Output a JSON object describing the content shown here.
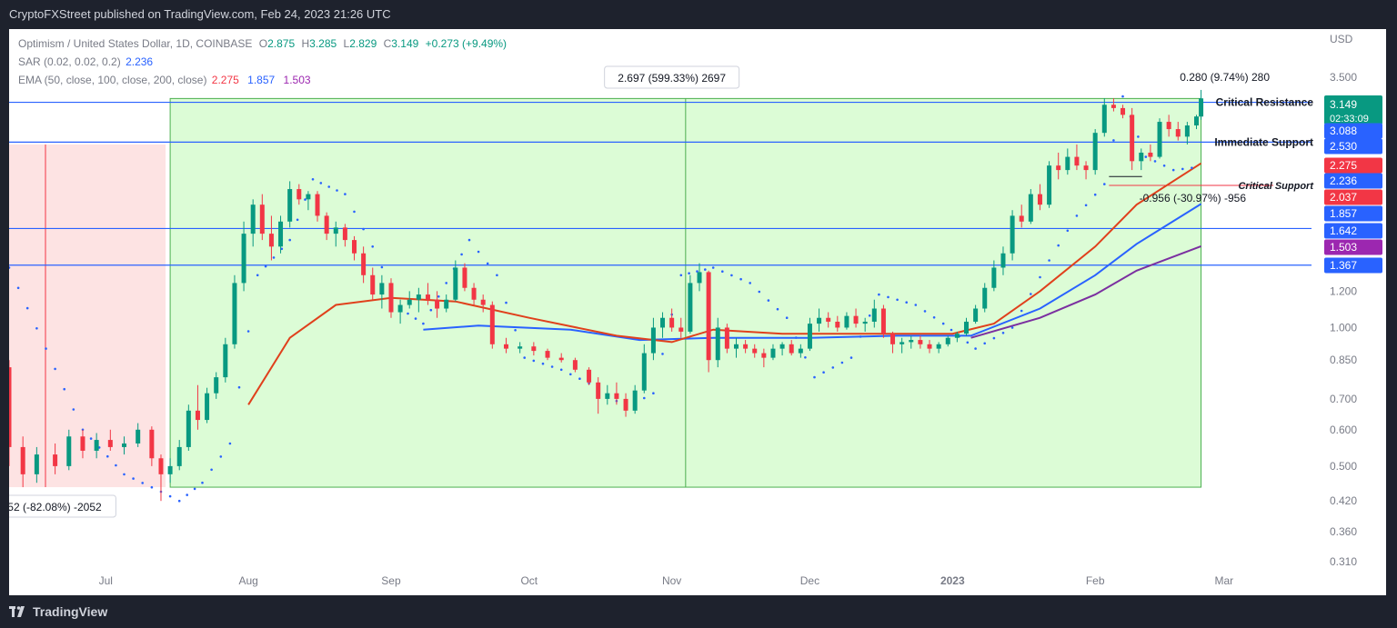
{
  "header": {
    "publisher_line": "CryptoFXStreet published on TradingView.com, Feb 24, 2023 21:26 UTC"
  },
  "legend": {
    "symbol": "Optimism / United States Dollar, 1D, COINBASE",
    "ohlc": {
      "o_label": "O",
      "o": "2.875",
      "h_label": "H",
      "h": "3.285",
      "l_label": "L",
      "l": "2.829",
      "c_label": "C",
      "c": "3.149",
      "change": "+0.273 (+9.49%)"
    },
    "sar": {
      "label": "SAR (0.02, 0.02, 0.2)",
      "value": "2.236"
    },
    "ema": {
      "label": "EMA (50, close, 100, close, 200, close)",
      "v1": "2.275",
      "v2": "1.857",
      "v3": "1.503"
    }
  },
  "footer": {
    "brand": "TradingView"
  },
  "colors": {
    "up": "#089981",
    "down": "#f23645",
    "ema50": "#e0401c",
    "ema100": "#2962ff",
    "ema200": "#7b2fa0",
    "sar": "#2962ff",
    "level_line": "#2962ff",
    "green_zone": "#dcfcd6",
    "red_zone": "#fde3e3",
    "price_tag": "#089981"
  },
  "chart_data": {
    "type": "candlestick",
    "scale": "log",
    "currency": "USD",
    "y_ticks": [
      3.5,
      1.2,
      1.0,
      0.85,
      0.7,
      0.6,
      0.5,
      0.42,
      0.36,
      0.31
    ],
    "y_tick_labels": [
      "3.500",
      "1.200",
      "1.000",
      "0.850",
      "0.700",
      "0.600",
      "0.500",
      "0.420",
      "0.360",
      "0.310"
    ],
    "x_ticks": [
      {
        "date": "2022-07-01",
        "label": "Jul"
      },
      {
        "date": "2022-08-01",
        "label": "Aug"
      },
      {
        "date": "2022-09-01",
        "label": "Sep"
      },
      {
        "date": "2022-10-01",
        "label": "Oct"
      },
      {
        "date": "2022-11-01",
        "label": "Nov"
      },
      {
        "date": "2022-12-01",
        "label": "Dec"
      },
      {
        "date": "2023-01-01",
        "label": "2023"
      },
      {
        "date": "2023-02-01",
        "label": "Feb"
      },
      {
        "date": "2023-03-01",
        "label": "Mar"
      }
    ],
    "x_range": [
      "2022-06-10",
      "2023-03-20"
    ],
    "levels": [
      {
        "price": 3.088,
        "label": "Critical Resistance"
      },
      {
        "price": 2.53,
        "label": "Immediate Support"
      },
      {
        "price": 1.642,
        "label": ""
      },
      {
        "price": 1.367,
        "label": ""
      },
      {
        "price": 2.037,
        "label": "Critical Support"
      }
    ],
    "price_scale_tags": [
      {
        "value": "3.149",
        "sub": "02:33:09",
        "color": "#089981"
      },
      {
        "value": "3.088",
        "color": "#2962ff"
      },
      {
        "value": "2.530",
        "color": "#2962ff"
      },
      {
        "value": "2.275",
        "color": "#f23645"
      },
      {
        "value": "2.236",
        "color": "#2962ff"
      },
      {
        "value": "2.037",
        "color": "#f23645"
      },
      {
        "value": "1.857",
        "color": "#2962ff"
      },
      {
        "value": "1.642",
        "color": "#2962ff"
      },
      {
        "value": "1.503",
        "color": "#9c27b0"
      },
      {
        "value": "1.367",
        "color": "#2962ff"
      }
    ],
    "measures": [
      {
        "text": "2.697 (599.33%) 2697",
        "kind": "range_up",
        "from_date": "2022-07-15",
        "to_date": "2023-02-24",
        "low": 0.45,
        "high": 3.147
      },
      {
        "text": "0.280 (9.74%) 280",
        "kind": "small_up"
      },
      {
        "text": "-0.956 (-30.97%) -956",
        "kind": "range_down",
        "from_date": "2023-02-04",
        "to_date": "2023-02-10",
        "high": 3.088,
        "low": 2.13
      },
      {
        "text": "52 (-82.08%) -2052",
        "kind": "range_down",
        "from_date": "2022-06-10",
        "to_date": "2022-07-14",
        "high": 2.5,
        "low": 0.45
      }
    ],
    "candles": [
      [
        "2022-06-10",
        0.82,
        0.85,
        0.5,
        0.55
      ],
      [
        "2022-06-13",
        0.55,
        0.58,
        0.45,
        0.48
      ],
      [
        "2022-06-16",
        0.48,
        0.55,
        0.46,
        0.53
      ],
      [
        "2022-06-20",
        0.53,
        0.56,
        0.48,
        0.5
      ],
      [
        "2022-06-23",
        0.5,
        0.6,
        0.49,
        0.58
      ],
      [
        "2022-06-26",
        0.58,
        0.6,
        0.52,
        0.54
      ],
      [
        "2022-06-29",
        0.54,
        0.59,
        0.52,
        0.57
      ],
      [
        "2022-07-02",
        0.57,
        0.6,
        0.54,
        0.55
      ],
      [
        "2022-07-05",
        0.55,
        0.58,
        0.53,
        0.56
      ],
      [
        "2022-07-08",
        0.56,
        0.62,
        0.55,
        0.6
      ],
      [
        "2022-07-11",
        0.6,
        0.61,
        0.5,
        0.52
      ],
      [
        "2022-07-13",
        0.52,
        0.53,
        0.42,
        0.48
      ],
      [
        "2022-07-15",
        0.48,
        0.52,
        0.46,
        0.5
      ],
      [
        "2022-07-17",
        0.5,
        0.57,
        0.49,
        0.55
      ],
      [
        "2022-07-19",
        0.55,
        0.68,
        0.54,
        0.66
      ],
      [
        "2022-07-21",
        0.66,
        0.75,
        0.6,
        0.63
      ],
      [
        "2022-07-23",
        0.63,
        0.74,
        0.62,
        0.72
      ],
      [
        "2022-07-25",
        0.72,
        0.8,
        0.7,
        0.78
      ],
      [
        "2022-07-27",
        0.78,
        0.95,
        0.76,
        0.92
      ],
      [
        "2022-07-29",
        0.92,
        1.3,
        0.9,
        1.25
      ],
      [
        "2022-07-31",
        1.25,
        1.7,
        1.2,
        1.6
      ],
      [
        "2022-08-02",
        1.6,
        1.9,
        1.5,
        1.85
      ],
      [
        "2022-08-04",
        1.85,
        1.95,
        1.55,
        1.6
      ],
      [
        "2022-08-06",
        1.6,
        1.75,
        1.4,
        1.5
      ],
      [
        "2022-08-08",
        1.5,
        1.75,
        1.45,
        1.7
      ],
      [
        "2022-08-10",
        1.7,
        2.08,
        1.65,
        2.0
      ],
      [
        "2022-08-12",
        2.0,
        2.05,
        1.85,
        1.9
      ],
      [
        "2022-08-14",
        1.9,
        1.98,
        1.8,
        1.95
      ],
      [
        "2022-08-16",
        1.95,
        1.98,
        1.7,
        1.75
      ],
      [
        "2022-08-18",
        1.75,
        1.78,
        1.55,
        1.6
      ],
      [
        "2022-08-20",
        1.6,
        1.7,
        1.5,
        1.65
      ],
      [
        "2022-08-22",
        1.65,
        1.68,
        1.5,
        1.55
      ],
      [
        "2022-08-24",
        1.55,
        1.58,
        1.4,
        1.45
      ],
      [
        "2022-08-26",
        1.45,
        1.5,
        1.25,
        1.3
      ],
      [
        "2022-08-28",
        1.3,
        1.35,
        1.15,
        1.18
      ],
      [
        "2022-08-30",
        1.18,
        1.3,
        1.1,
        1.25
      ],
      [
        "2022-09-01",
        1.25,
        1.28,
        1.05,
        1.08
      ],
      [
        "2022-09-03",
        1.08,
        1.15,
        1.02,
        1.12
      ],
      [
        "2022-09-05",
        1.12,
        1.2,
        1.1,
        1.15
      ],
      [
        "2022-09-07",
        1.15,
        1.22,
        1.08,
        1.18
      ],
      [
        "2022-09-09",
        1.18,
        1.25,
        1.12,
        1.15
      ],
      [
        "2022-09-11",
        1.15,
        1.2,
        1.05,
        1.1
      ],
      [
        "2022-09-13",
        1.1,
        1.18,
        1.08,
        1.15
      ],
      [
        "2022-09-15",
        1.15,
        1.4,
        1.14,
        1.35
      ],
      [
        "2022-09-17",
        1.35,
        1.38,
        1.2,
        1.22
      ],
      [
        "2022-09-19",
        1.22,
        1.25,
        1.12,
        1.15
      ],
      [
        "2022-09-21",
        1.15,
        1.18,
        1.08,
        1.12
      ],
      [
        "2022-09-23",
        1.12,
        1.14,
        0.9,
        0.92
      ],
      [
        "2022-09-26",
        0.92,
        0.95,
        0.88,
        0.9
      ],
      [
        "2022-09-29",
        0.9,
        0.93,
        0.88,
        0.91
      ],
      [
        "2022-10-02",
        0.91,
        0.93,
        0.87,
        0.89
      ],
      [
        "2022-10-05",
        0.89,
        0.9,
        0.85,
        0.86
      ],
      [
        "2022-10-08",
        0.86,
        0.88,
        0.84,
        0.85
      ],
      [
        "2022-10-11",
        0.85,
        0.86,
        0.8,
        0.81
      ],
      [
        "2022-10-14",
        0.81,
        0.82,
        0.75,
        0.76
      ],
      [
        "2022-10-16",
        0.76,
        0.78,
        0.65,
        0.7
      ],
      [
        "2022-10-18",
        0.7,
        0.75,
        0.68,
        0.72
      ],
      [
        "2022-10-20",
        0.72,
        0.76,
        0.68,
        0.7
      ],
      [
        "2022-10-22",
        0.7,
        0.72,
        0.64,
        0.66
      ],
      [
        "2022-10-24",
        0.66,
        0.75,
        0.65,
        0.73
      ],
      [
        "2022-10-26",
        0.73,
        0.92,
        0.72,
        0.88
      ],
      [
        "2022-10-28",
        0.88,
        1.05,
        0.85,
        1.0
      ],
      [
        "2022-10-30",
        1.0,
        1.08,
        0.95,
        1.05
      ],
      [
        "2022-11-01",
        1.05,
        1.1,
        0.98,
        1.0
      ],
      [
        "2022-11-03",
        1.0,
        1.05,
        0.95,
        0.98
      ],
      [
        "2022-11-05",
        0.98,
        1.3,
        0.97,
        1.25
      ],
      [
        "2022-11-07",
        1.25,
        1.38,
        1.2,
        1.32
      ],
      [
        "2022-11-09",
        1.32,
        1.33,
        0.8,
        0.85
      ],
      [
        "2022-11-11",
        0.85,
        1.05,
        0.82,
        1.0
      ],
      [
        "2022-11-13",
        1.0,
        1.02,
        0.88,
        0.9
      ],
      [
        "2022-11-15",
        0.9,
        0.95,
        0.86,
        0.92
      ],
      [
        "2022-11-17",
        0.92,
        0.94,
        0.88,
        0.9
      ],
      [
        "2022-11-19",
        0.9,
        0.92,
        0.86,
        0.88
      ],
      [
        "2022-11-21",
        0.88,
        0.9,
        0.82,
        0.86
      ],
      [
        "2022-11-23",
        0.86,
        0.92,
        0.85,
        0.9
      ],
      [
        "2022-11-25",
        0.9,
        0.93,
        0.87,
        0.92
      ],
      [
        "2022-11-27",
        0.92,
        0.94,
        0.87,
        0.88
      ],
      [
        "2022-11-29",
        0.88,
        0.92,
        0.86,
        0.9
      ],
      [
        "2022-12-01",
        0.9,
        1.05,
        0.89,
        1.02
      ],
      [
        "2022-12-03",
        1.02,
        1.1,
        0.98,
        1.05
      ],
      [
        "2022-12-05",
        1.05,
        1.08,
        1.0,
        1.03
      ],
      [
        "2022-12-07",
        1.03,
        1.06,
        0.98,
        1.0
      ],
      [
        "2022-12-09",
        1.0,
        1.08,
        0.99,
        1.06
      ],
      [
        "2022-12-11",
        1.06,
        1.1,
        1.0,
        1.02
      ],
      [
        "2022-12-13",
        1.02,
        1.05,
        0.98,
        1.03
      ],
      [
        "2022-12-15",
        1.03,
        1.15,
        1.0,
        1.1
      ],
      [
        "2022-12-17",
        1.1,
        1.12,
        0.95,
        0.97
      ],
      [
        "2022-12-19",
        0.97,
        0.98,
        0.88,
        0.92
      ],
      [
        "2022-12-21",
        0.92,
        0.95,
        0.88,
        0.93
      ],
      [
        "2022-12-23",
        0.93,
        0.96,
        0.9,
        0.94
      ],
      [
        "2022-12-25",
        0.94,
        0.96,
        0.9,
        0.92
      ],
      [
        "2022-12-27",
        0.92,
        0.94,
        0.88,
        0.9
      ],
      [
        "2022-12-29",
        0.9,
        0.93,
        0.88,
        0.92
      ],
      [
        "2022-12-31",
        0.92,
        0.96,
        0.91,
        0.95
      ],
      [
        "2023-01-02",
        0.95,
        0.98,
        0.93,
        0.97
      ],
      [
        "2023-01-04",
        0.97,
        1.05,
        0.96,
        1.03
      ],
      [
        "2023-01-06",
        1.03,
        1.12,
        1.02,
        1.1
      ],
      [
        "2023-01-08",
        1.1,
        1.25,
        1.08,
        1.22
      ],
      [
        "2023-01-10",
        1.22,
        1.4,
        1.2,
        1.35
      ],
      [
        "2023-01-12",
        1.35,
        1.5,
        1.3,
        1.45
      ],
      [
        "2023-01-14",
        1.45,
        1.8,
        1.4,
        1.75
      ],
      [
        "2023-01-16",
        1.75,
        1.85,
        1.65,
        1.7
      ],
      [
        "2023-01-18",
        1.7,
        2.0,
        1.68,
        1.95
      ],
      [
        "2023-01-20",
        1.95,
        2.05,
        1.8,
        1.85
      ],
      [
        "2023-01-22",
        1.85,
        2.3,
        1.82,
        2.25
      ],
      [
        "2023-01-24",
        2.25,
        2.4,
        2.1,
        2.2
      ],
      [
        "2023-01-26",
        2.2,
        2.45,
        2.15,
        2.35
      ],
      [
        "2023-01-28",
        2.35,
        2.5,
        2.2,
        2.25
      ],
      [
        "2023-01-30",
        2.25,
        2.3,
        2.1,
        2.2
      ],
      [
        "2023-02-01",
        2.2,
        2.7,
        2.15,
        2.65
      ],
      [
        "2023-02-03",
        2.65,
        3.15,
        2.6,
        3.05
      ],
      [
        "2023-02-05",
        3.05,
        3.15,
        2.95,
        3.0
      ],
      [
        "2023-02-07",
        3.0,
        3.05,
        2.85,
        2.9
      ],
      [
        "2023-02-09",
        2.9,
        3.0,
        2.2,
        2.3
      ],
      [
        "2023-02-11",
        2.3,
        2.45,
        2.2,
        2.4
      ],
      [
        "2023-02-13",
        2.4,
        2.5,
        2.3,
        2.35
      ],
      [
        "2023-02-15",
        2.35,
        2.85,
        2.33,
        2.8
      ],
      [
        "2023-02-17",
        2.8,
        2.9,
        2.6,
        2.7
      ],
      [
        "2023-02-19",
        2.7,
        2.8,
        2.55,
        2.6
      ],
      [
        "2023-02-21",
        2.6,
        2.8,
        2.5,
        2.75
      ],
      [
        "2023-02-23",
        2.75,
        2.9,
        2.7,
        2.876
      ],
      [
        "2023-02-24",
        2.875,
        3.285,
        2.829,
        3.149
      ]
    ],
    "ema50": [
      [
        "2022-08-01",
        0.68
      ],
      [
        "2022-08-10",
        0.95
      ],
      [
        "2022-08-20",
        1.12
      ],
      [
        "2022-09-01",
        1.16
      ],
      [
        "2022-09-15",
        1.14
      ],
      [
        "2022-10-01",
        1.05
      ],
      [
        "2022-10-20",
        0.96
      ],
      [
        "2022-11-01",
        0.93
      ],
      [
        "2022-11-10",
        0.99
      ],
      [
        "2022-11-25",
        0.97
      ],
      [
        "2022-12-15",
        0.97
      ],
      [
        "2023-01-01",
        0.97
      ],
      [
        "2023-01-10",
        1.02
      ],
      [
        "2023-01-20",
        1.2
      ],
      [
        "2023-02-01",
        1.5
      ],
      [
        "2023-02-10",
        1.85
      ],
      [
        "2023-02-24",
        2.275
      ]
    ],
    "ema100": [
      [
        "2022-09-08",
        0.99
      ],
      [
        "2022-09-20",
        1.01
      ],
      [
        "2022-10-10",
        0.99
      ],
      [
        "2022-10-25",
        0.94
      ],
      [
        "2022-11-10",
        0.95
      ],
      [
        "2022-12-01",
        0.95
      ],
      [
        "2022-12-20",
        0.96
      ],
      [
        "2023-01-05",
        0.96
      ],
      [
        "2023-01-20",
        1.1
      ],
      [
        "2023-02-01",
        1.3
      ],
      [
        "2023-02-10",
        1.52
      ],
      [
        "2023-02-24",
        1.857
      ]
    ],
    "ema200": [
      [
        "2023-01-05",
        0.95
      ],
      [
        "2023-01-20",
        1.05
      ],
      [
        "2023-02-01",
        1.18
      ],
      [
        "2023-02-10",
        1.33
      ],
      [
        "2023-02-24",
        1.503
      ]
    ],
    "sar_points": [
      [
        "2022-06-10",
        1.35
      ],
      [
        "2022-06-18",
        0.9
      ],
      [
        "2022-06-26",
        0.6
      ],
      [
        "2022-07-05",
        0.48
      ],
      [
        "2022-07-13",
        0.44
      ],
      [
        "2022-07-17",
        0.42
      ],
      [
        "2022-07-22",
        0.46
      ],
      [
        "2022-07-28",
        0.56
      ],
      [
        "2022-08-03",
        1.3
      ],
      [
        "2022-08-10",
        1.55
      ],
      [
        "2022-08-15",
        2.1
      ],
      [
        "2022-08-22",
        1.95
      ],
      [
        "2022-08-28",
        1.5
      ],
      [
        "2022-09-03",
        1.1
      ],
      [
        "2022-09-08",
        1.02
      ],
      [
        "2022-09-13",
        1.25
      ],
      [
        "2022-09-18",
        1.55
      ],
      [
        "2022-09-24",
        1.3
      ],
      [
        "2022-09-30",
        0.86
      ],
      [
        "2022-10-08",
        0.81
      ],
      [
        "2022-10-16",
        0.74
      ],
      [
        "2022-10-22",
        0.67
      ],
      [
        "2022-10-28",
        0.72
      ],
      [
        "2022-11-03",
        1.3
      ],
      [
        "2022-11-10",
        1.35
      ],
      [
        "2022-11-18",
        1.25
      ],
      [
        "2022-11-26",
        1.05
      ],
      [
        "2022-12-02",
        0.78
      ],
      [
        "2022-12-10",
        0.86
      ],
      [
        "2022-12-16",
        1.18
      ],
      [
        "2022-12-24",
        1.12
      ],
      [
        "2022-12-30",
        1.02
      ],
      [
        "2023-01-06",
        0.9
      ],
      [
        "2023-01-14",
        1.0
      ],
      [
        "2023-01-22",
        1.4
      ],
      [
        "2023-01-28",
        1.75
      ],
      [
        "2023-02-03",
        2.05
      ],
      [
        "2023-02-07",
        3.18
      ],
      [
        "2023-02-12",
        2.35
      ],
      [
        "2023-02-18",
        2.2
      ],
      [
        "2023-02-24",
        2.236
      ]
    ]
  }
}
